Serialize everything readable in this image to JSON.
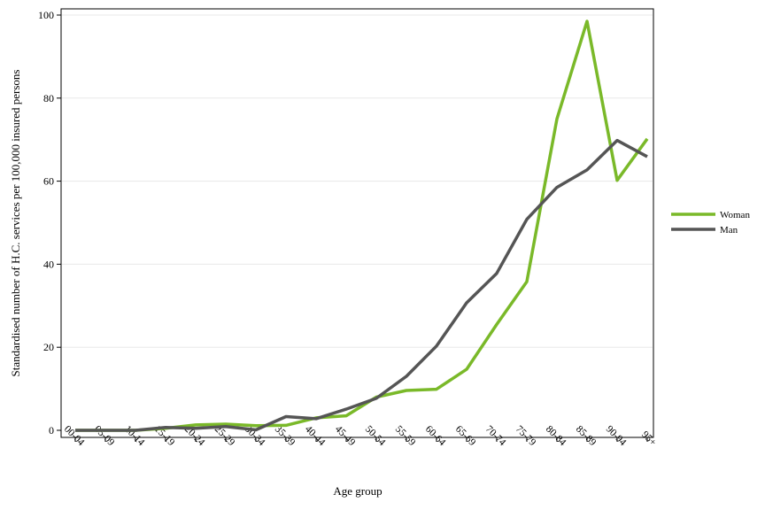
{
  "chart_data": {
    "type": "line",
    "title": "",
    "xlabel": "Age group",
    "ylabel": "Standardised number of H.C. services per 100,000 insured persons",
    "categories": [
      "00-04",
      "05-09",
      "10-14",
      "15-19",
      "20-24",
      "25-29",
      "30-34",
      "35-39",
      "40-44",
      "45-49",
      "50-54",
      "55-59",
      "60-64",
      "65-69",
      "70-74",
      "75-79",
      "80-84",
      "85-89",
      "90-94",
      "95+"
    ],
    "ylim": [
      0,
      100
    ],
    "yticks": [
      "0",
      "20",
      "40",
      "60",
      "80",
      "100"
    ],
    "grid": true,
    "legend_position": "right",
    "series": [
      {
        "name": "Woman",
        "color": "#7ab929",
        "values": [
          0,
          0,
          0,
          0.5,
          1.3,
          1.5,
          1.1,
          1.2,
          3.0,
          3.5,
          8.0,
          9.6,
          9.9,
          14.7,
          25.5,
          35.8,
          75.0,
          98.5,
          60.2,
          70.2
        ]
      },
      {
        "name": "Man",
        "color": "#555555",
        "values": [
          0,
          0,
          0,
          0.7,
          0.5,
          0.9,
          0.1,
          3.3,
          2.8,
          5.1,
          7.7,
          13.0,
          20.3,
          30.7,
          37.8,
          50.8,
          58.5,
          62.7,
          69.8,
          65.9
        ]
      }
    ]
  }
}
